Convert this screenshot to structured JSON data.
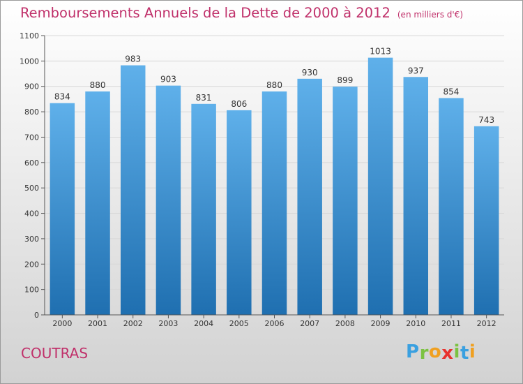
{
  "title": "Remboursements Annuels de la Dette de 2000 à 2012",
  "subtitle": "(en milliers d'€)",
  "commune": "COUTRAS",
  "logo": {
    "letters": [
      "P",
      "r",
      "o",
      "x",
      "i",
      "t",
      "i"
    ],
    "colors": [
      "#3aa0e0",
      "#7cc242",
      "#f0a020",
      "#e8322e",
      "#7cc242",
      "#3aa0e0",
      "#f0a020"
    ]
  },
  "colors": {
    "title": "#c0306a",
    "bar_top": "#5fb0ea",
    "bar_bottom": "#1f6fb0",
    "grid": "#d8d8d8"
  },
  "chart_data": {
    "type": "bar",
    "title": "Remboursements Annuels de la Dette de 2000 à 2012",
    "subtitle": "(en milliers d'€)",
    "categories": [
      "2000",
      "2001",
      "2002",
      "2003",
      "2004",
      "2005",
      "2006",
      "2007",
      "2008",
      "2009",
      "2010",
      "2011",
      "2012"
    ],
    "values": [
      834,
      880,
      983,
      903,
      831,
      806,
      880,
      930,
      899,
      1013,
      937,
      854,
      743
    ],
    "ylim": [
      0,
      1100
    ],
    "yticks": [
      0,
      100,
      200,
      300,
      400,
      500,
      600,
      700,
      800,
      900,
      1000,
      1100
    ],
    "grid": true,
    "legend": "none"
  }
}
